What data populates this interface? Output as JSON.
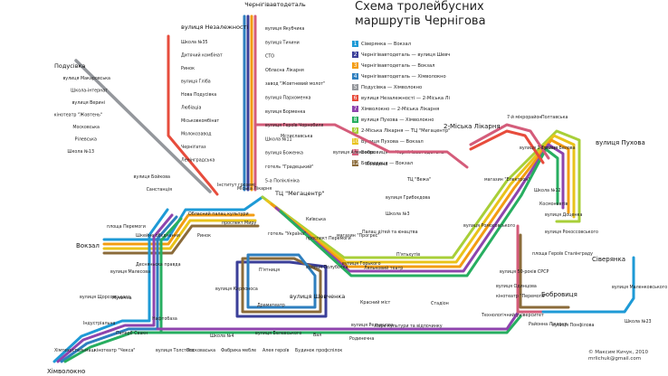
{
  "title_lines": [
    "Схема тролейбусних",
    "маршрутів Чернігова"
  ],
  "colors": {
    "1": "#1e9ad6",
    "2": "#3b3f99",
    "3": "#f39c12",
    "4": "#2e7fbf",
    "5": "#94979c",
    "6": "#e74c3c",
    "7": "#8e44ad",
    "8": "#27ae60",
    "9": "#a8cf38",
    "10": "#e9c31a",
    "11": "#d45c7a",
    "12": "#8b6b3a"
  },
  "legend": [
    {
      "num": "1",
      "text": "Сіверянка — Вокзал"
    },
    {
      "num": "2",
      "text": "Чернігівавтодеталь — вулиця Шевченка"
    },
    {
      "num": "3",
      "text": "Чернігівавтодеталь — Вокзал"
    },
    {
      "num": "4",
      "text": "Чернігівавтодеталь — Хімволокно"
    },
    {
      "num": "5",
      "text": "Подусівка — Хімволокно"
    },
    {
      "num": "6",
      "text": "вулиця Незалежності — 2-Міська Лікарня"
    },
    {
      "num": "7",
      "text": "Хімволокно — 2-Міська Лікарня"
    },
    {
      "num": "8",
      "text": "вулиця Пухова — Хімволокно"
    },
    {
      "num": "9",
      "text": "2-Міська Лікарня — ТЦ \"Мегацентр\""
    },
    {
      "num": "10",
      "text": "Вулиця Пухова — Вокзал"
    },
    {
      "num": "11",
      "text": "Бобровиця — Чернігівавтодеталь"
    },
    {
      "num": "12",
      "text": "Бобровиця — Вокзал"
    }
  ],
  "terminals": {
    "chernihivavtodetal": "Чернігівавтодеталь",
    "nezalezhnosti": "вулиця Незалежності",
    "podusivka": "Подусівка",
    "vokzal": "Вокзал",
    "khimvolokno": "Хімволокно",
    "likarnia2": "2-Міська Лікарня",
    "pukhova": "вулиця Пухова",
    "sivereanka": "Сіверянка",
    "bobrovytsia": "Бобровиця",
    "megacentr": "ТЦ \"Мегацентр\"",
    "shevchenka": "вулиця Шевченка"
  },
  "stops": {
    "nez_line": [
      "Школа №35",
      "Дитячий комбінат",
      "Ринок",
      "вулиця Гліба",
      "Нова Подусівка",
      "Любіаціа",
      "Міськовкомбінат",
      "Молокозавод",
      "Черніґатаз",
      "Ленінградська"
    ],
    "north_line": [
      "вулиця Якубчика",
      "вулиця Тичини",
      "СТО",
      "Обласна Лікарня",
      "завод \"Жовтневий молот\"",
      "вулиця Пархоменка",
      "вулиця Борменка",
      "вулиця Героїв Чорнобиля",
      "Школа №11",
      "вулиця Боженка",
      "готель \"Градецький\"",
      "5-а Поліклініка"
    ],
    "pod_line": [
      "вулиця Макаровська",
      "Школа-інтернат",
      "вулиця Верині",
      "кінотеатр \"Жовтень\"",
      "Московська",
      "Рілевська",
      "Школа №13"
    ],
    "central": [
      "вулиця Бойкова",
      "Санстанція",
      "Інститут гроземі",
      "Міська Лікарня",
      "Обласний палац культури",
      "проспект Миру",
      "площа Перемоги",
      "Шкейне обєднання",
      "Ринок",
      "Десняньска правда",
      "вулиця Малесова",
      "Музична",
      "вулиця Кирпоноса",
      "готель \"Україна\"",
      "Київська",
      "проспект Перемоги",
      "магазин \"Прогрес\"",
      "Палац дітей та юнацтва",
      "П'ятьхутів",
      "Ляльковий театр",
      "вулиця Горького",
      "вулиця Полуботка",
      "П'ятниця",
      "Драматеатр",
      "Красний міст"
    ],
    "northeast": [
      "Мстиславська",
      "вулиця Алексеєва",
      "Ялівщина",
      "ТЦ \"Вежа\"",
      "вулиця Грибоєдова",
      "Школа №3",
      "вулиця Ромоcовського",
      "магазин \"Електрон\"",
      "7-й мікрорайон",
      "Полтавська",
      "вулиця 1-Травня",
      "вулиця Белова",
      "Школа №12",
      "Космонавтів",
      "вулиця Доценка",
      "вулиця Рокоссовського",
      "площа Героїв Сталінграду",
      "вулиця 50-років СРСР",
      "вулиця Одинцова",
      "кінотеатр \"Перемога\"",
      "Стадіон",
      "Технологічний університет"
    ],
    "south": [
      "вулиця Щорсовського",
      "Індустріальна",
      "Нафтобаза",
      "Паперб Свакн",
      "Школа №4",
      "вулиця Белевського",
      "Вал",
      "вулиця Реднецова",
      "Парк культури та відпочинку",
      "Хімтехустельмаш",
      "кінотеатр \"Чекса\"",
      "вулиця Толстого",
      "Посковаська",
      "Фабрика мебле",
      "Алея героїв",
      "Будинок профспілок",
      "Родинечна",
      "Районна Лікарня",
      "вулиця Понфілова",
      "вулиця Маленковського",
      "Школа №23"
    ]
  },
  "author": [
    "© Максим Кичук, 2010",
    "mrlichuk@gmail.com"
  ]
}
